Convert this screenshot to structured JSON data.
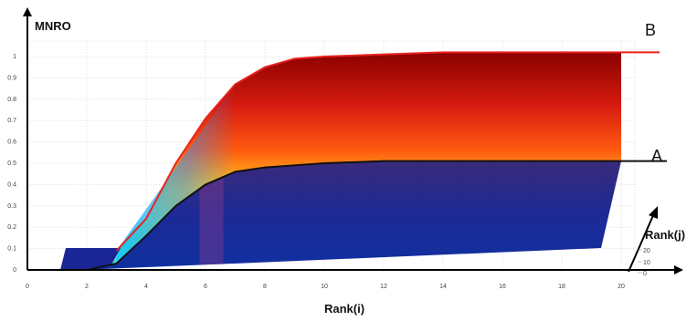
{
  "chart_data": {
    "type": "area",
    "ylabel": "MNRO",
    "xlabel": "Rank(i)",
    "zlabel": "Rank(j)",
    "x_ticks": [
      "0",
      "2",
      "4",
      "6",
      "8",
      "10",
      "12",
      "14",
      "16",
      "18",
      "20"
    ],
    "y_ticks": [
      "0",
      "0.1",
      "0.2",
      "0.3",
      "0.4",
      "0.5",
      "0.6",
      "0.7",
      "0.8",
      "0.9",
      "1"
    ],
    "z_ticks": [
      "0",
      "10",
      "20"
    ],
    "xlim": [
      0,
      20
    ],
    "ylim": [
      0,
      1
    ],
    "zlim": [
      0,
      20
    ],
    "grid": true,
    "series": [
      {
        "name": "B",
        "color": "#e8231d",
        "x": [
          3,
          4,
          5,
          6,
          7,
          8,
          9,
          10,
          12,
          14,
          16,
          18,
          20
        ],
        "y": [
          0.09,
          0.24,
          0.5,
          0.71,
          0.87,
          0.95,
          0.99,
          1.0,
          1.01,
          1.02,
          1.02,
          1.02,
          1.02
        ]
      },
      {
        "name": "A",
        "color": "#111111",
        "x": [
          2,
          3,
          4,
          5,
          6,
          7,
          8,
          10,
          12,
          14,
          16,
          18,
          20
        ],
        "y": [
          0.0,
          0.03,
          0.16,
          0.3,
          0.4,
          0.46,
          0.48,
          0.5,
          0.51,
          0.51,
          0.51,
          0.51,
          0.51
        ]
      }
    ]
  }
}
